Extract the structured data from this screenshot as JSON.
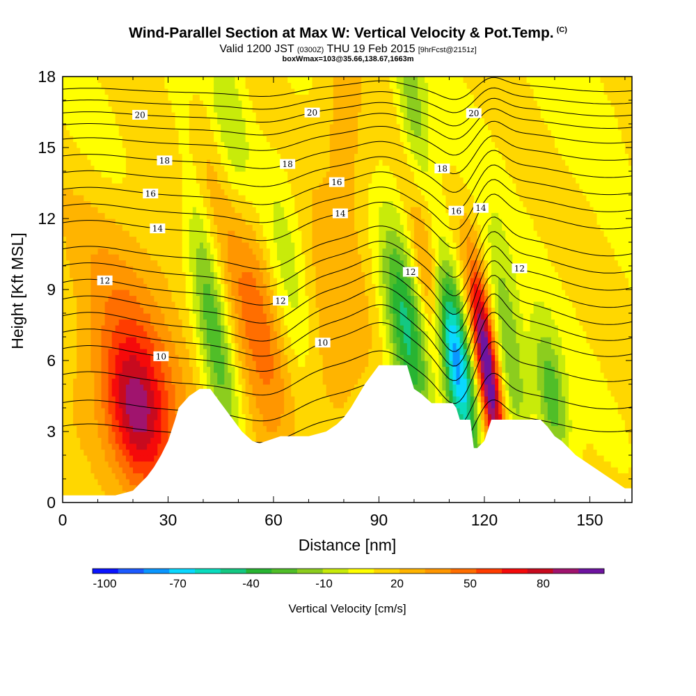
{
  "header": {
    "title": "Wind-Parallel Section at Max W: Vertical Velocity & Pot.Temp.",
    "copyright": "(C)",
    "subtitle_a": "Valid 1200 JST",
    "subtitle_b": "(0300Z)",
    "subtitle_c": "THU 19 Feb 2015",
    "subtitle_d": "[9hrFcst@2151z]",
    "subtitle2": "boxWmax=103@35.66,138.67,1663m"
  },
  "chart_data": {
    "type": "heatmap",
    "title": "Wind-Parallel Section at Max W: Vertical Velocity & Pot.Temp.",
    "xlabel": "Distance [nm]",
    "ylabel": "Height [Kft MSL]",
    "xlim": [
      0,
      162
    ],
    "ylim": [
      0,
      18
    ],
    "xticks": [
      0,
      30,
      60,
      90,
      120,
      150
    ],
    "yticks": [
      0,
      3,
      6,
      9,
      12,
      15,
      18
    ],
    "colorbar": {
      "label": "Vertical Velocity [cm/s]",
      "tick_labels": [
        "-100",
        "-70",
        "-40",
        "-10",
        "20",
        "50",
        "80"
      ],
      "tick_values": [
        -100,
        -70,
        -40,
        -10,
        20,
        50,
        80
      ],
      "range": [
        -105,
        105
      ],
      "bin_width": 10,
      "colors": [
        "#0a14ff",
        "#1c5aff",
        "#0a96ff",
        "#0ad8ff",
        "#0adcbe",
        "#14c882",
        "#28b432",
        "#50be28",
        "#8ccd1e",
        "#c8eb0a",
        "#ffff00",
        "#ffd700",
        "#ffb400",
        "#ff9600",
        "#ff6e00",
        "#ff3c00",
        "#f50a0a",
        "#c80a1e",
        "#a0146e",
        "#6e14a0"
      ]
    },
    "terrain": {
      "x": [
        0,
        15,
        20,
        22,
        24,
        26,
        28,
        30,
        32,
        33,
        36,
        39,
        42,
        45,
        48,
        51,
        54,
        56,
        58,
        62,
        66,
        70,
        75,
        78,
        80,
        82,
        84,
        86,
        88,
        90,
        94,
        98,
        100,
        102,
        105,
        109,
        111,
        112,
        113,
        116,
        117,
        118,
        120,
        122,
        126,
        130,
        136,
        138,
        140,
        142,
        144,
        146,
        148,
        150,
        152,
        154,
        156,
        158,
        160,
        162
      ],
      "height": [
        0.3,
        0.3,
        0.5,
        0.8,
        1.1,
        1.5,
        2.0,
        2.6,
        3.5,
        4.0,
        4.5,
        4.8,
        4.8,
        4.2,
        3.6,
        3.0,
        2.6,
        2.5,
        2.6,
        2.8,
        2.8,
        2.8,
        3.0,
        3.3,
        3.6,
        4.0,
        4.5,
        5.0,
        5.4,
        5.8,
        5.8,
        5.8,
        4.8,
        4.6,
        4.2,
        4.2,
        4.2,
        4.0,
        3.5,
        3.5,
        2.3,
        2.3,
        2.6,
        3.5,
        3.5,
        3.5,
        3.5,
        3.2,
        2.8,
        2.6,
        2.3,
        2.0,
        1.8,
        1.6,
        1.4,
        1.2,
        1.0,
        0.8,
        0.6,
        0.6
      ]
    },
    "w_features": [
      {
        "x": 21,
        "z": 3.8,
        "w": 55,
        "sx": 6,
        "sz": 2.2
      },
      {
        "x": 21,
        "z": 6.5,
        "w": 25,
        "sx": 14,
        "sz": 5
      },
      {
        "x": 42,
        "z": 8.5,
        "w": -45,
        "sx": 3.5,
        "sz": 5
      },
      {
        "x": 55,
        "z": 8.0,
        "w": 30,
        "sx": 5,
        "sz": 5
      },
      {
        "x": 65,
        "z": 9.0,
        "w": -20,
        "sx": 4,
        "sz": 4
      },
      {
        "x": 75,
        "z": 7.0,
        "w": 20,
        "sx": 8,
        "sz": 3
      },
      {
        "x": 98,
        "z": 7.0,
        "w": -55,
        "sx": 4,
        "sz": 3
      },
      {
        "x": 104,
        "z": 9.5,
        "w": 35,
        "sx": 3,
        "sz": 3
      },
      {
        "x": 112,
        "z": 6.0,
        "w": -85,
        "sx": 3,
        "sz": 3
      },
      {
        "x": 121,
        "z": 5.5,
        "w": 95,
        "sx": 2.2,
        "sz": 3
      },
      {
        "x": 127,
        "z": 6.5,
        "w": -35,
        "sx": 3,
        "sz": 3
      },
      {
        "x": 139,
        "z": 4.5,
        "w": -40,
        "sx": 3,
        "sz": 2
      },
      {
        "x": 48,
        "z": 16.0,
        "w": -25,
        "sx": 4,
        "sz": 3
      },
      {
        "x": 40,
        "z": 14.0,
        "w": 20,
        "sx": 4,
        "sz": 3
      },
      {
        "x": 100,
        "z": 16.0,
        "w": -30,
        "sx": 3,
        "sz": 3
      },
      {
        "x": 80,
        "z": 15.5,
        "w": 18,
        "sx": 5,
        "sz": 3
      },
      {
        "x": 150,
        "z": 17.0,
        "w": -5,
        "sx": 10,
        "sz": 2
      },
      {
        "x": 10,
        "z": 14.0,
        "w": -5,
        "sx": 10,
        "sz": 3
      }
    ],
    "isentropes": [
      {
        "label": "10",
        "base": 6.6,
        "labels_at": [
          {
            "x": 28,
            "text": "10"
          },
          {
            "x": 74,
            "text": "10"
          }
        ]
      },
      {
        "label": "12",
        "base": 9.4,
        "labels_at": [
          {
            "x": 12,
            "text": "12"
          },
          {
            "x": 62,
            "text": "12"
          },
          {
            "x": 99,
            "text": "12"
          },
          {
            "x": 130,
            "text": "12"
          }
        ]
      },
      {
        "label": "14",
        "base": 11.9,
        "labels_at": [
          {
            "x": 27,
            "text": "14"
          },
          {
            "x": 79,
            "text": "14"
          },
          {
            "x": 119,
            "text": "14"
          }
        ]
      },
      {
        "label": "16",
        "base": 13.3,
        "labels_at": [
          {
            "x": 25,
            "text": "16"
          },
          {
            "x": 78,
            "text": "16"
          },
          {
            "x": 112,
            "text": "16"
          }
        ]
      },
      {
        "label": "18",
        "base": 14.7,
        "labels_at": [
          {
            "x": 29,
            "text": "18"
          },
          {
            "x": 64,
            "text": "18"
          },
          {
            "x": 108,
            "text": "18"
          }
        ]
      },
      {
        "label": "20",
        "base": 16.5,
        "labels_at": [
          {
            "x": 22,
            "text": "20"
          },
          {
            "x": 71,
            "text": "20"
          },
          {
            "x": 117,
            "text": "20"
          }
        ]
      }
    ],
    "extra_contour_levels": [
      3.3,
      4.3,
      5.5,
      7.3,
      8.0,
      8.7,
      10.1,
      10.8,
      12.6,
      14.0,
      15.4,
      16.0,
      17.0,
      17.5
    ]
  }
}
